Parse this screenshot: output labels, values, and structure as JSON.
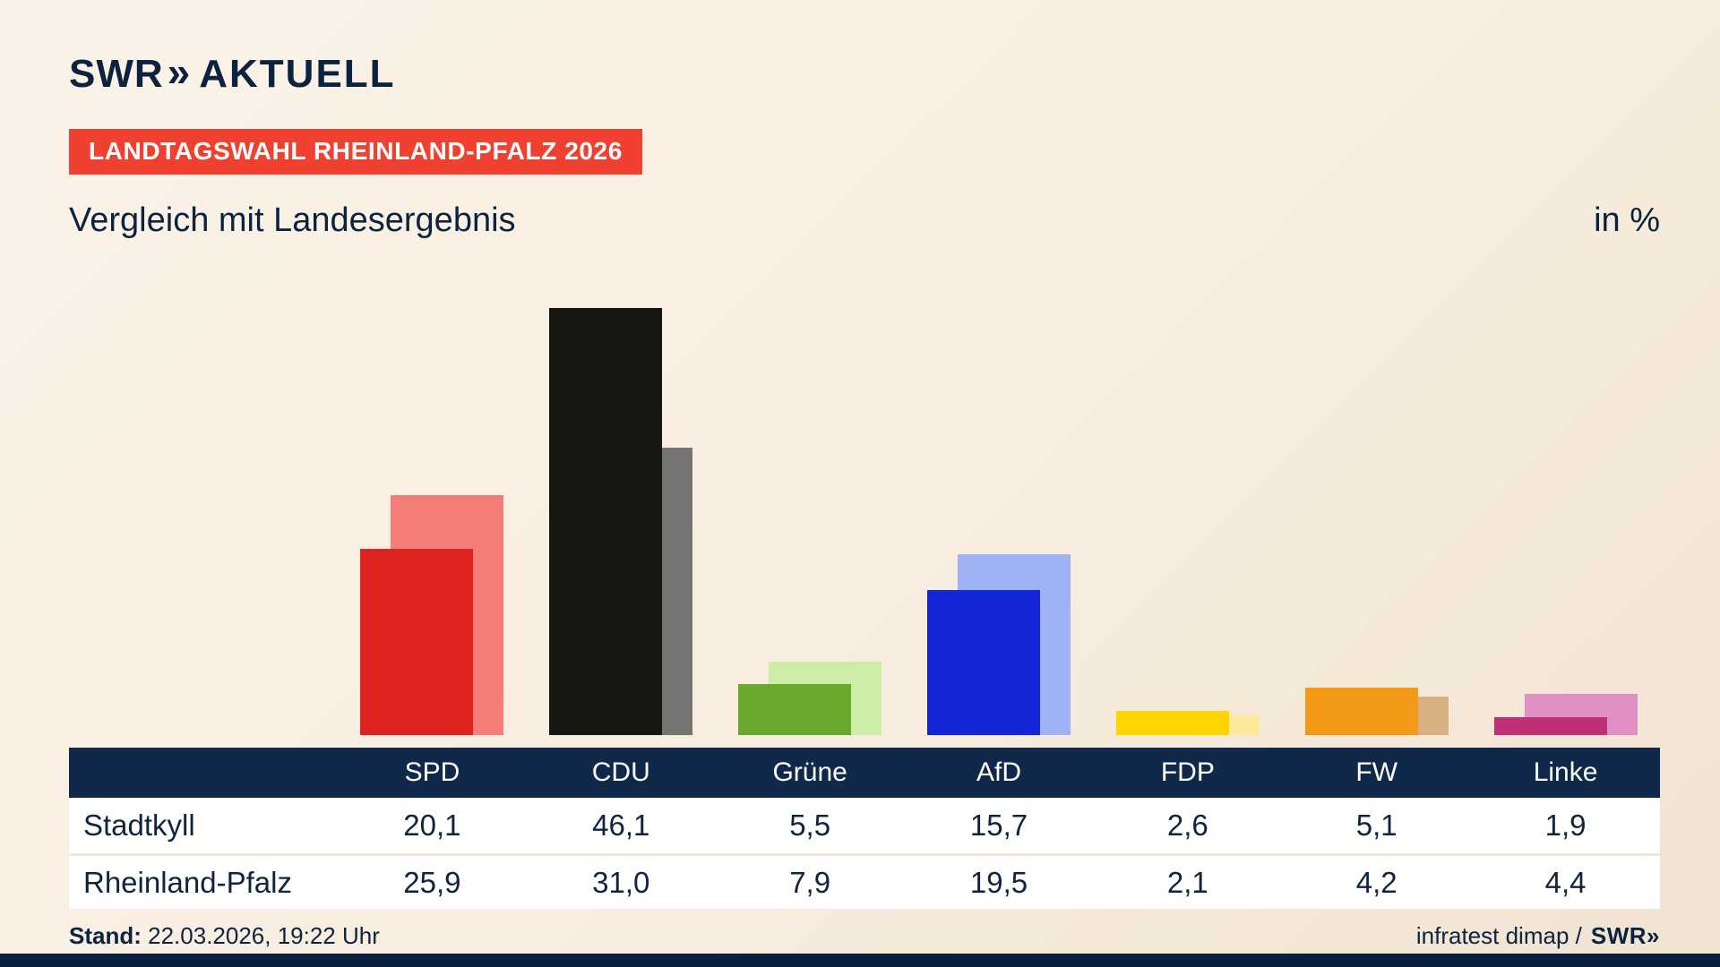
{
  "logo": {
    "swr": "SWR",
    "chevrons": "»",
    "aktuell": "AKTUELL"
  },
  "badge": "LANDTAGSWAHL RHEINLAND-PFALZ 2026",
  "title": "Vergleich mit Landesergebnis",
  "unit_label": "in %",
  "chart_data": {
    "type": "bar",
    "title": "Vergleich mit Landesergebnis",
    "unit": "%",
    "categories": [
      "SPD",
      "CDU",
      "Grüne",
      "AfD",
      "FDP",
      "FW",
      "Linke"
    ],
    "series": [
      {
        "name": "Stadtkyll",
        "values": [
          20.1,
          46.1,
          5.5,
          15.7,
          2.6,
          5.1,
          1.9
        ]
      },
      {
        "name": "Rheinland-Pfalz",
        "values": [
          25.9,
          31.0,
          7.9,
          19.5,
          2.1,
          4.2,
          4.4
        ]
      }
    ],
    "colors": {
      "front": [
        "#dd2420",
        "#181613",
        "#69a82c",
        "#1226d8",
        "#ffd400",
        "#f59a18",
        "#bf3076"
      ],
      "back": [
        "#f57d78",
        "#747473",
        "#cdeca5",
        "#a0b2f6",
        "#fde89b",
        "#d9b183",
        "#df8fc2"
      ]
    },
    "ylim": [
      0,
      47.5
    ],
    "grid": false,
    "legend": "none (values in table below)"
  },
  "table": {
    "header": [
      "",
      "SPD",
      "CDU",
      "Grüne",
      "AfD",
      "FDP",
      "FW",
      "Linke"
    ],
    "rows": [
      {
        "label": "Stadtkyll",
        "values": [
          "20,1",
          "46,1",
          "5,5",
          "15,7",
          "2,6",
          "5,1",
          "1,9"
        ]
      },
      {
        "label": "Rheinland-Pfalz",
        "values": [
          "25,9",
          "31,0",
          "7,9",
          "19,5",
          "2,1",
          "4,2",
          "4,4"
        ]
      }
    ]
  },
  "footer": {
    "stand_label": "Stand:",
    "stand_value": "22.03.2026, 19:22 Uhr",
    "source_text": "infratest dimap /",
    "source_logo_swr": "SWR",
    "source_logo_chevrons": "»"
  }
}
